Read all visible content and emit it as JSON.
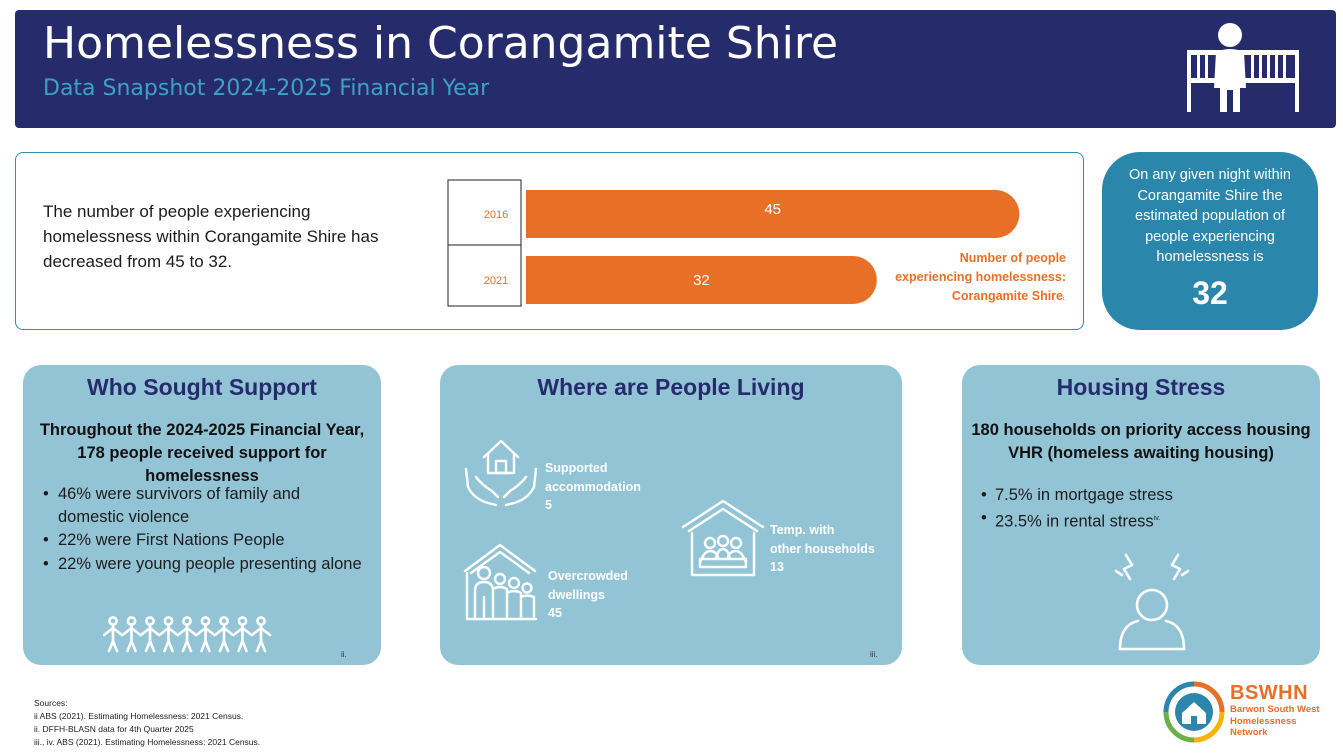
{
  "header": {
    "title": "Homelessness in Corangamite Shire",
    "subtitle": "Data Snapshot 2024-2025 Financial Year",
    "icon": "person-on-bench-icon"
  },
  "trend": {
    "text": "The number of people experiencing homelessness within Corangamite Shire has decreased from 45 to 32."
  },
  "chart_data": {
    "type": "bar",
    "orientation": "horizontal",
    "categories": [
      "2016",
      "2021"
    ],
    "values": [
      45,
      32
    ],
    "series_name": "Number of people experiencing homelessness: Corangamite Shire",
    "series_name_lines": [
      "Number of people",
      "experiencing homelessness:",
      "Corangamite Shire"
    ],
    "footnote_mark": "i.",
    "xlim": [
      0,
      54
    ],
    "color": "#e87026"
  },
  "night": {
    "text": "On any given night within Corangamite Shire the estimated population of people experiencing homelessness is",
    "value": "32"
  },
  "support": {
    "title": "Who Sought Support",
    "lead": "Throughout the 2024-2025 Financial Year, 178 people received support for homelessness",
    "bullets": [
      "46% were survivors of family and domestic violence",
      "22% were First Nations People",
      "22% were young people presenting alone"
    ],
    "footnote": "ii.",
    "icon": "people-row-icon"
  },
  "living": {
    "title": "Where are People Living",
    "items": [
      {
        "label_lines": [
          "Supported",
          "accommodation"
        ],
        "value": "5",
        "icon": "house-in-hands-icon"
      },
      {
        "label_lines": [
          "Temp. with",
          "other households"
        ],
        "value": "13",
        "icon": "house-with-people-icon"
      },
      {
        "label_lines": [
          "Overcrowded",
          "dwellings"
        ],
        "value": "45",
        "icon": "crowded-house-icon"
      }
    ],
    "footnote": "iii."
  },
  "stress": {
    "title": "Housing Stress",
    "lead": "180 households on priority access housing VHR (homeless awaiting housing)",
    "bullets": [
      {
        "text": "7.5% in mortgage stress",
        "sup": ""
      },
      {
        "text": "23.5% in rental stress",
        "sup": "iv."
      }
    ],
    "icon": "stressed-person-icon"
  },
  "sources": {
    "heading": "Sources:",
    "lines": [
      "ii ABS (2021). Estimating Homelessness: 2021 Census.",
      "ii. DFFH-BLASN data for 4th Quarter 2025",
      "iii., iv. ABS (2021). Estimating Homelessness: 2021 Census."
    ]
  },
  "logo": {
    "abbr": "BSWHN",
    "full_lines": [
      "Barwon South West",
      "Homelessness",
      "Network"
    ],
    "colors": {
      "orange": "#e87026",
      "blue": "#2b86ab",
      "yellow": "#f4b400",
      "green": "#6bb04a"
    }
  },
  "colors": {
    "navy": "#262c6b",
    "teal": "#2b86ab",
    "card": "#93c4d6",
    "accent_orange": "#e87026"
  }
}
